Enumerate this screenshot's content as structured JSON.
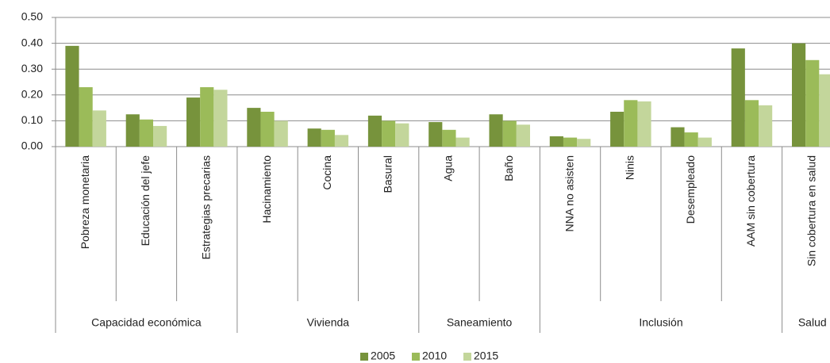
{
  "chart_data": {
    "type": "bar",
    "groups": [
      {
        "name": "Capacidad económica",
        "categories": [
          "Pobreza monetaria",
          "Educación del jefe",
          "Estrategias precarias"
        ]
      },
      {
        "name": "Vivienda",
        "categories": [
          "Hacinamiento",
          "Cocina",
          "Basural"
        ]
      },
      {
        "name": "Saneamiento",
        "categories": [
          "Agua",
          "Baño"
        ]
      },
      {
        "name": "Inclusión",
        "categories": [
          "NNA no asisten",
          "Ninis",
          "Desempleado",
          "AAM sin cobertura"
        ]
      },
      {
        "name": "Salud",
        "categories": [
          "Sin cobertura en salud"
        ]
      }
    ],
    "series": [
      {
        "name": "2005",
        "color": "#77933c",
        "values": [
          0.39,
          0.125,
          0.19,
          0.15,
          0.07,
          0.12,
          0.095,
          0.125,
          0.04,
          0.135,
          0.075,
          0.38,
          0.4
        ]
      },
      {
        "name": "2010",
        "color": "#9bbb59",
        "values": [
          0.23,
          0.105,
          0.23,
          0.135,
          0.065,
          0.1,
          0.065,
          0.1,
          0.035,
          0.18,
          0.055,
          0.18,
          0.335
        ]
      },
      {
        "name": "2015",
        "color": "#c3d69b",
        "values": [
          0.14,
          0.08,
          0.22,
          0.1,
          0.045,
          0.09,
          0.035,
          0.085,
          0.03,
          0.175,
          0.035,
          0.16,
          0.28
        ]
      }
    ],
    "ylim": [
      0,
      0.5
    ],
    "yticks": [
      {
        "value": 0,
        "label": "0.00"
      },
      {
        "value": 0.1,
        "label": "0.10"
      },
      {
        "value": 0.2,
        "label": "0.20"
      },
      {
        "value": 0.3,
        "label": "0.30"
      },
      {
        "value": 0.4,
        "label": "0.40"
      },
      {
        "value": 0.5,
        "label": "0.50"
      }
    ],
    "grid": true,
    "legend": "bottom"
  }
}
